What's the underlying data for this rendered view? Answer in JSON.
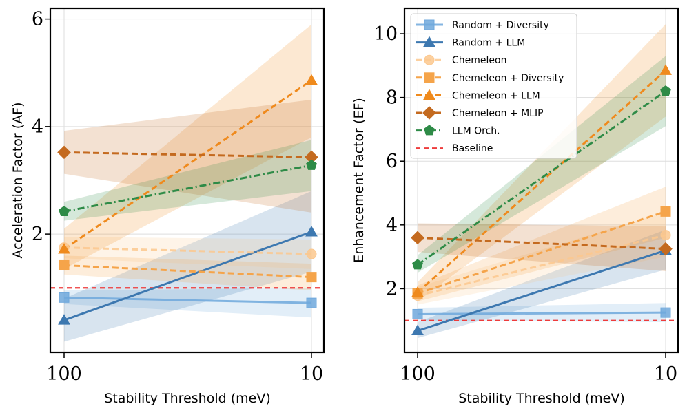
{
  "chart_data": [
    {
      "type": "line",
      "panel": "left",
      "xlabel": "Stability Threshold (meV)",
      "ylabel": "Acceleration Factor (AF)",
      "categories": [
        "100",
        "10"
      ],
      "ylim": [
        -0.2,
        6.2
      ],
      "yticks": [
        2,
        4,
        6
      ],
      "baseline": 1.0,
      "series": [
        {
          "name": "Random + Diversity",
          "values": [
            0.82,
            0.72
          ],
          "band": [
            [
              0.7,
              0.95
            ],
            [
              0.45,
              1.0
            ]
          ]
        },
        {
          "name": "Random + LLM",
          "values": [
            0.4,
            2.04
          ],
          "band": [
            [
              0.0,
              0.8
            ],
            [
              1.3,
              2.8
            ]
          ]
        },
        {
          "name": "Chemeleon",
          "values": [
            1.75,
            1.63
          ],
          "band": [
            [
              1.55,
              1.95
            ],
            [
              1.35,
              1.9
            ]
          ]
        },
        {
          "name": "Chemeleon + Diversity",
          "values": [
            1.42,
            1.2
          ],
          "band": [
            [
              1.25,
              1.6
            ],
            [
              0.95,
              1.45
            ]
          ]
        },
        {
          "name": "Chemeleon + LLM",
          "values": [
            1.72,
            4.86
          ],
          "band": [
            [
              1.35,
              2.1
            ],
            [
              3.8,
              5.9
            ]
          ]
        },
        {
          "name": "Chemeleon + MLIP",
          "values": [
            3.52,
            3.43
          ],
          "band": [
            [
              3.12,
              3.92
            ],
            [
              2.4,
              4.5
            ]
          ]
        },
        {
          "name": "LLM Orch.",
          "values": [
            2.42,
            3.28
          ],
          "band": [
            [
              2.25,
              2.6
            ],
            [
              2.8,
              3.75
            ]
          ]
        }
      ]
    },
    {
      "type": "line",
      "panel": "right",
      "xlabel": "Stability Threshold (meV)",
      "ylabel": "Enhancement Factor (EF)",
      "categories": [
        "100",
        "10"
      ],
      "ylim": [
        0.0,
        10.8
      ],
      "yticks": [
        2,
        4,
        6,
        8,
        10
      ],
      "baseline": 1.0,
      "series": [
        {
          "name": "Random + Diversity",
          "values": [
            1.2,
            1.25
          ],
          "band": [
            [
              1.0,
              1.4
            ],
            [
              0.95,
              1.55
            ]
          ]
        },
        {
          "name": "Random + LLM",
          "values": [
            0.68,
            3.2
          ],
          "band": [
            [
              0.45,
              0.95
            ],
            [
              2.6,
              3.85
            ]
          ]
        },
        {
          "name": "Chemeleon",
          "values": [
            1.78,
            3.68
          ],
          "band": [
            [
              1.5,
              2.05
            ],
            [
              3.0,
              4.4
            ]
          ]
        },
        {
          "name": "Chemeleon + Diversity",
          "values": [
            1.85,
            4.42
          ],
          "band": [
            [
              1.6,
              2.1
            ],
            [
              3.6,
              5.2
            ]
          ]
        },
        {
          "name": "Chemeleon + LLM",
          "values": [
            1.88,
            8.85
          ],
          "band": [
            [
              1.6,
              2.2
            ],
            [
              7.4,
              10.3
            ]
          ]
        },
        {
          "name": "Chemeleon + MLIP",
          "values": [
            3.6,
            3.25
          ],
          "band": [
            [
              3.15,
              4.05
            ],
            [
              2.55,
              3.95
            ]
          ]
        },
        {
          "name": "LLM Orch.",
          "values": [
            2.75,
            8.2
          ],
          "band": [
            [
              2.5,
              3.05
            ],
            [
              7.1,
              9.3
            ]
          ]
        }
      ]
    }
  ],
  "legend": {
    "placement": "top-left",
    "items": [
      {
        "label": "Random + Diversity",
        "marker": "square",
        "color": "#6fa8dc",
        "dash": "solid",
        "alpha": 0.85
      },
      {
        "label": "Random + LLM",
        "marker": "triangle",
        "color": "#3d78b0",
        "dash": "solid",
        "alpha": 1.0
      },
      {
        "label": "Chemeleon",
        "marker": "circle",
        "color": "#fcc88e",
        "dash": "dash",
        "alpha": 0.85
      },
      {
        "label": "Chemeleon + Diversity",
        "marker": "square",
        "color": "#f5a44a",
        "dash": "dash",
        "alpha": 1.0
      },
      {
        "label": "Chemeleon + LLM",
        "marker": "triangle",
        "color": "#ef8a1d",
        "dash": "dash",
        "alpha": 1.0
      },
      {
        "label": "Chemeleon + MLIP",
        "marker": "diamond",
        "color": "#c46a1f",
        "dash": "dash",
        "alpha": 1.0
      },
      {
        "label": "LLM Orch.",
        "marker": "pentagon",
        "color": "#2e8b47",
        "dash": "dashdot",
        "alpha": 1.0
      },
      {
        "label": "Baseline",
        "marker": "none",
        "color": "#ee3b3b",
        "dash": "baseline",
        "alpha": 1.0
      }
    ]
  }
}
